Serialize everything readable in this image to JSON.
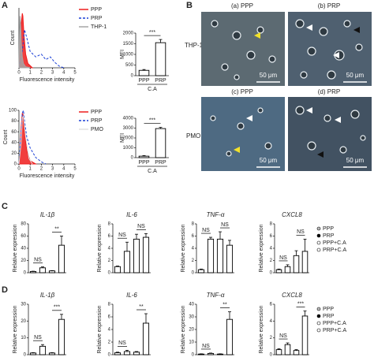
{
  "panel_labels": [
    "A",
    "B",
    "C",
    "D"
  ],
  "microscopy": {
    "images": [
      {
        "label": "(a) PPP",
        "scale": "50 μm"
      },
      {
        "label": "(b) PRP",
        "scale": "50 μm"
      },
      {
        "label": "(c) PPP",
        "scale": "50 μm"
      },
      {
        "label": "(d) PRP",
        "scale": "50 μm"
      }
    ],
    "row_labels": [
      "THP-1",
      "PMO"
    ]
  },
  "chart_data": [
    {
      "type": "line",
      "ylabel": "Count",
      "xlabel": "Fluorescence intensity",
      "xlim": [
        0,
        5
      ],
      "xticks": [
        0,
        1,
        2,
        3,
        4,
        5
      ],
      "ylim": [
        0,
        110
      ],
      "legend": "right",
      "series": [
        {
          "name": "PPP",
          "color": "#ee1c1c",
          "fill": true,
          "x": [
            0,
            0.1,
            0.2,
            0.3,
            0.35,
            0.45,
            0.6,
            0.8,
            1.2
          ],
          "values": [
            0,
            30,
            80,
            100,
            95,
            60,
            25,
            8,
            0
          ]
        },
        {
          "name": "PRP",
          "color": "#1a3fd6",
          "dashed": true,
          "x": [
            0,
            0.3,
            0.5,
            0.7,
            1.0,
            1.5,
            2.0,
            2.4,
            2.8,
            3.2,
            3.6,
            4.0
          ],
          "values": [
            0,
            30,
            70,
            55,
            30,
            20,
            25,
            15,
            20,
            10,
            3,
            0
          ]
        },
        {
          "name": "THP-1",
          "color": "#a6a6a6",
          "fill": true,
          "x": [
            0,
            0.05,
            0.1,
            0.15,
            0.2,
            0.3,
            0.4,
            0.6,
            1.0
          ],
          "values": [
            5,
            60,
            95,
            80,
            50,
            20,
            8,
            2,
            0
          ]
        }
      ]
    },
    {
      "type": "bar",
      "ylabel": "MFI",
      "xlabel": "C.A",
      "categories": [
        "PPP",
        "PRP"
      ],
      "values": [
        250,
        1550
      ],
      "errors": [
        40,
        150
      ],
      "ylim": [
        0,
        2000
      ],
      "yticks": [
        0,
        500,
        1000,
        1500,
        2000
      ],
      "annotations": [
        "***"
      ]
    },
    {
      "type": "line",
      "ylabel": "Count",
      "xlabel": "Fluorescence intensity",
      "xlim": [
        0,
        5
      ],
      "xticks": [
        0,
        1,
        2,
        3,
        4,
        5
      ],
      "ylim": [
        0,
        100
      ],
      "yticks": [
        0,
        20,
        40,
        60,
        80,
        100
      ],
      "legend": "right",
      "series": [
        {
          "name": "PPP",
          "color": "#ee1c1c",
          "fill": true,
          "x": [
            0,
            0.1,
            0.2,
            0.3,
            0.4,
            0.5,
            0.7,
            1.0,
            1.5
          ],
          "values": [
            0,
            20,
            70,
            95,
            90,
            60,
            25,
            6,
            0
          ]
        },
        {
          "name": "PRP",
          "color": "#1a3fd6",
          "dashed": true,
          "x": [
            0,
            0.2,
            0.3,
            0.4,
            0.5,
            0.7,
            1.0,
            1.5,
            2.0,
            2.4
          ],
          "values": [
            0,
            60,
            95,
            100,
            80,
            50,
            30,
            12,
            4,
            0
          ]
        },
        {
          "name": "PMO",
          "color": "#e0e0e0",
          "x": [
            0,
            0.2,
            0.3,
            0.4,
            0.6,
            0.9,
            1.2
          ],
          "values": [
            0,
            40,
            85,
            90,
            50,
            10,
            0
          ]
        }
      ]
    },
    {
      "type": "bar",
      "ylabel": "MFI",
      "xlabel": "C.A",
      "categories": [
        "PPP",
        "PRP"
      ],
      "values": [
        150,
        2950
      ],
      "errors": [
        60,
        120
      ],
      "ylim": [
        0,
        4000
      ],
      "yticks": [
        0,
        1000,
        2000,
        3000,
        4000
      ],
      "annotations": [
        "***"
      ]
    },
    {
      "type": "bar",
      "title": "IL-1β",
      "ylabel": "Relative expression",
      "categories": [
        null,
        null,
        null,
        null
      ],
      "values": [
        2,
        8,
        3,
        45
      ],
      "errors": [
        0.5,
        1.5,
        0.5,
        15
      ],
      "ylim": [
        0,
        80
      ],
      "yticks": [
        0,
        20,
        40,
        60,
        80
      ],
      "annotations": [
        "NS",
        "**"
      ]
    },
    {
      "type": "bar",
      "title": "IL-6",
      "ylabel": "Relative expression",
      "categories": [
        null,
        null,
        null,
        null
      ],
      "values": [
        1,
        3.5,
        5.5,
        5.8
      ],
      "errors": [
        0.1,
        1.5,
        0.8,
        0.6
      ],
      "ylim": [
        0,
        8
      ],
      "yticks": [
        0,
        2,
        4,
        6,
        8
      ],
      "annotations": [
        "NS",
        "NS"
      ]
    },
    {
      "type": "bar",
      "title": "TNF-α",
      "ylabel": "Relative expression",
      "categories": [
        null,
        null,
        null,
        null
      ],
      "values": [
        0.5,
        5.5,
        5.5,
        4.5
      ],
      "errors": [
        0.1,
        0.3,
        1.2,
        0.8
      ],
      "ylim": [
        0,
        8
      ],
      "yticks": [
        0,
        2,
        4,
        6,
        8
      ],
      "annotations": [
        "NS",
        "NS"
      ]
    },
    {
      "type": "bar",
      "title": "CXCL8",
      "ylabel": "Relative expression",
      "categories": [
        "PPP",
        "PRP",
        "PPP+C.A",
        "PRP+C.A"
      ],
      "colors": [
        "#bfbfbf",
        "#000000",
        "#ffffff",
        "#ffffff"
      ],
      "legend": "right",
      "values": [
        0.5,
        1,
        2.8,
        3.5
      ],
      "errors": [
        0.1,
        0.3,
        0.8,
        2
      ],
      "ylim": [
        0,
        8
      ],
      "yticks": [
        0,
        2,
        4,
        6,
        8
      ],
      "annotations": [
        "NS",
        "NS"
      ]
    },
    {
      "type": "bar",
      "title": "IL-1β",
      "ylabel": "Relative expression",
      "categories": [
        null,
        null,
        null,
        null
      ],
      "values": [
        1,
        5,
        1,
        21
      ],
      "errors": [
        0.2,
        1,
        0.2,
        3
      ],
      "ylim": [
        0,
        30
      ],
      "yticks": [
        0,
        10,
        20,
        30
      ],
      "annotations": [
        "NS",
        "***"
      ]
    },
    {
      "type": "bar",
      "title": "IL-6",
      "ylabel": "Relative expression",
      "categories": [
        null,
        null,
        null,
        null
      ],
      "values": [
        0.3,
        0.5,
        0.4,
        5
      ],
      "errors": [
        0.1,
        0.2,
        0.1,
        1.5
      ],
      "ylim": [
        0,
        8
      ],
      "yticks": [
        0,
        2,
        4,
        6,
        8
      ],
      "annotations": [
        "NS",
        "**"
      ]
    },
    {
      "type": "bar",
      "title": "TNF-α",
      "ylabel": "Relative expression",
      "categories": [
        null,
        null,
        null,
        null
      ],
      "values": [
        0.5,
        1,
        0.5,
        28
      ],
      "errors": [
        0.2,
        0.3,
        0.2,
        6
      ],
      "ylim": [
        0,
        40
      ],
      "yticks": [
        0,
        10,
        20,
        30,
        40
      ],
      "annotations": [
        "NS",
        "**"
      ]
    },
    {
      "type": "bar",
      "title": "CXCL8",
      "ylabel": "Relative expression",
      "categories": [
        "PPP",
        "PRP",
        "PPP+C.A",
        "PRP+C.A"
      ],
      "colors": [
        "#bfbfbf",
        "#000000",
        "#ffffff",
        "#ffffff"
      ],
      "legend": "right",
      "values": [
        0.6,
        1.2,
        0.5,
        4.6
      ],
      "errors": [
        0.1,
        0.2,
        0.1,
        0.6
      ],
      "ylim": [
        0,
        6
      ],
      "yticks": [
        0,
        2,
        4,
        6
      ],
      "annotations": [
        "NS",
        "***"
      ]
    }
  ]
}
